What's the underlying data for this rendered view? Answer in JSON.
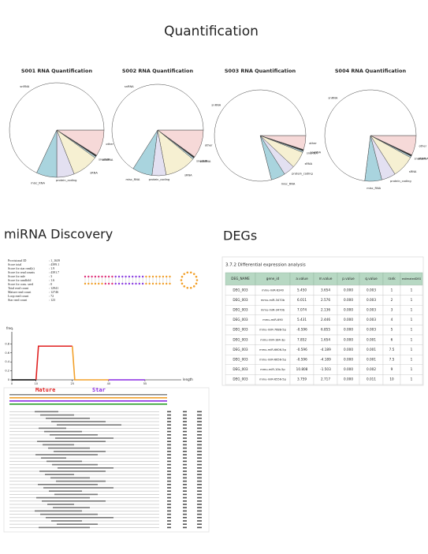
{
  "title": "Quantification",
  "chart_data": [
    {
      "type": "pie",
      "title": "S001 RNA Quantification",
      "categories": [
        "other",
        "scaRNA",
        "snoRNA",
        "sRNA",
        "protein_coding",
        "misc_RNA",
        "snRNA"
      ],
      "values": [
        9,
        0.5,
        0.5,
        9,
        6,
        7,
        68
      ],
      "colors": [
        "#f6d9d8",
        "#333333",
        "#bfe0e8",
        "#f6f0d2",
        "#e3e0f1",
        "#a9d4de",
        "#ffffff"
      ]
    },
    {
      "type": "pie",
      "title": "S002 RNA Quantification",
      "categories": [
        "other",
        "scaRNA",
        "snoRNA",
        "sRNA",
        "protein_coding",
        "misc_RNA",
        "snRNA"
      ],
      "values": [
        10,
        0.5,
        0.5,
        11,
        5,
        7,
        66
      ],
      "colors": [
        "#f6d9d8",
        "#333333",
        "#bfe0e8",
        "#f6f0d2",
        "#e3e0f1",
        "#a9d4de",
        "#ffffff"
      ]
    },
    {
      "type": "pie",
      "title": "S003 RNA Quantification",
      "categories": [
        "other",
        "scaRNA",
        "snoRNA",
        "sRNA",
        "protein_coding",
        "misc_RNA",
        "snRNA"
      ],
      "values": [
        5,
        0.5,
        0.5,
        6,
        4,
        5,
        79
      ],
      "colors": [
        "#f6d9d8",
        "#333333",
        "#bfe0e8",
        "#f6f0d2",
        "#e3e0f1",
        "#a9d4de",
        "#ffffff"
      ]
    },
    {
      "type": "pie",
      "title": "S004 RNA Quantification",
      "categories": [
        "other",
        "scaRNA",
        "snoRNA",
        "sRNA",
        "protein_coding",
        "misc_RNA",
        "snRNA"
      ],
      "values": [
        7,
        0.5,
        0.5,
        8,
        5,
        6,
        73
      ],
      "colors": [
        "#f6d9d8",
        "#333333",
        "#bfe0e8",
        "#f6f0d2",
        "#e3e0f1",
        "#a9d4de",
        "#ffffff"
      ]
    },
    {
      "type": "line",
      "y_label": "freq.",
      "x_label": "length",
      "x": [
        0,
        10,
        11,
        25,
        26,
        40,
        55,
        70
      ],
      "series": [
        {
          "color": "#000000",
          "values": [
            0,
            0,
            null,
            null,
            null,
            null,
            null,
            null
          ]
        },
        {
          "color": "#e02020",
          "values": [
            null,
            0,
            0.75,
            0.75,
            null,
            null,
            null,
            null
          ]
        },
        {
          "color": "#f2a02a",
          "values": [
            null,
            null,
            null,
            0.75,
            0,
            0,
            null,
            null
          ]
        },
        {
          "color": "#8a2be2",
          "values": [
            null,
            null,
            null,
            null,
            null,
            0,
            0,
            null
          ]
        },
        {
          "color": "#aaaaaa",
          "values": [
            null,
            null,
            null,
            null,
            null,
            null,
            0,
            0
          ]
        }
      ],
      "xlim": [
        0,
        70
      ],
      "xticks": [
        0,
        10,
        25,
        40,
        55
      ],
      "ylim": [
        0,
        1
      ],
      "yticks": [
        0,
        0.2,
        0.4,
        0.6,
        0.8
      ]
    }
  ],
  "mirna": {
    "heading": "miRNA Discovery",
    "stats": [
      {
        "label": "Provisional ID",
        "value": ": 1_1639"
      },
      {
        "label": "Score total",
        "value": ": 4399.1"
      },
      {
        "label": "Score for star read(s)",
        "value": ": 1.9"
      },
      {
        "label": "Score for read counts",
        "value": ": 4391.7"
      },
      {
        "label": "Score for mfe",
        "value": ": 3"
      },
      {
        "label": "Score for randfold",
        "value": ": 1.6"
      },
      {
        "label": "Score for cons. seed",
        "value": ": 0"
      },
      {
        "label": "Total read count",
        "value": ": 12941"
      },
      {
        "label": "Mature read count",
        "value": ": 12746"
      },
      {
        "label": "Loop read count",
        "value": ": 72"
      },
      {
        "label": "Star read count",
        "value": ": 123"
      }
    ],
    "alignment": {
      "mature": "Mature",
      "star": "Star"
    }
  },
  "degs": {
    "heading": "DEGs",
    "subtitle": "3.7.2 Differential expression analysis",
    "table": {
      "header": [
        "DEG_NAME",
        "gene_id",
        "a.value",
        "m.value",
        "p.value",
        "q.value",
        "rank",
        "estimatedDEG"
      ],
      "rows": [
        [
          "DEG_003",
          "mmu-miR-6240",
          "5.450",
          "3.654",
          "0.000",
          "0.003",
          "1",
          "1"
        ],
        [
          "DEG_003",
          "mmu-miR-3470b",
          "6.011",
          "2.576",
          "0.000",
          "0.003",
          "2",
          "1"
        ],
        [
          "DEG_003",
          "mmu-miR-3470b",
          "7.074",
          "2.136",
          "0.000",
          "0.003",
          "3",
          "1"
        ],
        [
          "DEG_003",
          "mmu-miR-690",
          "5.431",
          "2.446",
          "0.000",
          "0.003",
          "4",
          "1"
        ],
        [
          "DEG_003",
          "mmu-miR-7688-5p",
          "-0.596",
          "6.855",
          "0.000",
          "0.003",
          "5",
          "1"
        ],
        [
          "DEG_003",
          "mmu-miR-184-3p",
          "7.852",
          "1.654",
          "0.000",
          "0.001",
          "6",
          "1"
        ],
        [
          "DEG_003",
          "mmu-miR-6606-5p",
          "-0.596",
          "-4.189",
          "0.000",
          "0.001",
          "7.5",
          "1"
        ],
        [
          "DEG_003",
          "mmu-miR-6656-5p",
          "-0.596",
          "-4.189",
          "0.000",
          "0.001",
          "7.5",
          "1"
        ],
        [
          "DEG_003",
          "mmu-miR-10b-5p",
          "10.808",
          "-1.503",
          "0.000",
          "0.002",
          "9",
          "1"
        ],
        [
          "DEG_003",
          "mmu-miR-6556-5p",
          "3.759",
          "2.717",
          "0.000",
          "0.011",
          "10",
          "1"
        ]
      ]
    }
  }
}
